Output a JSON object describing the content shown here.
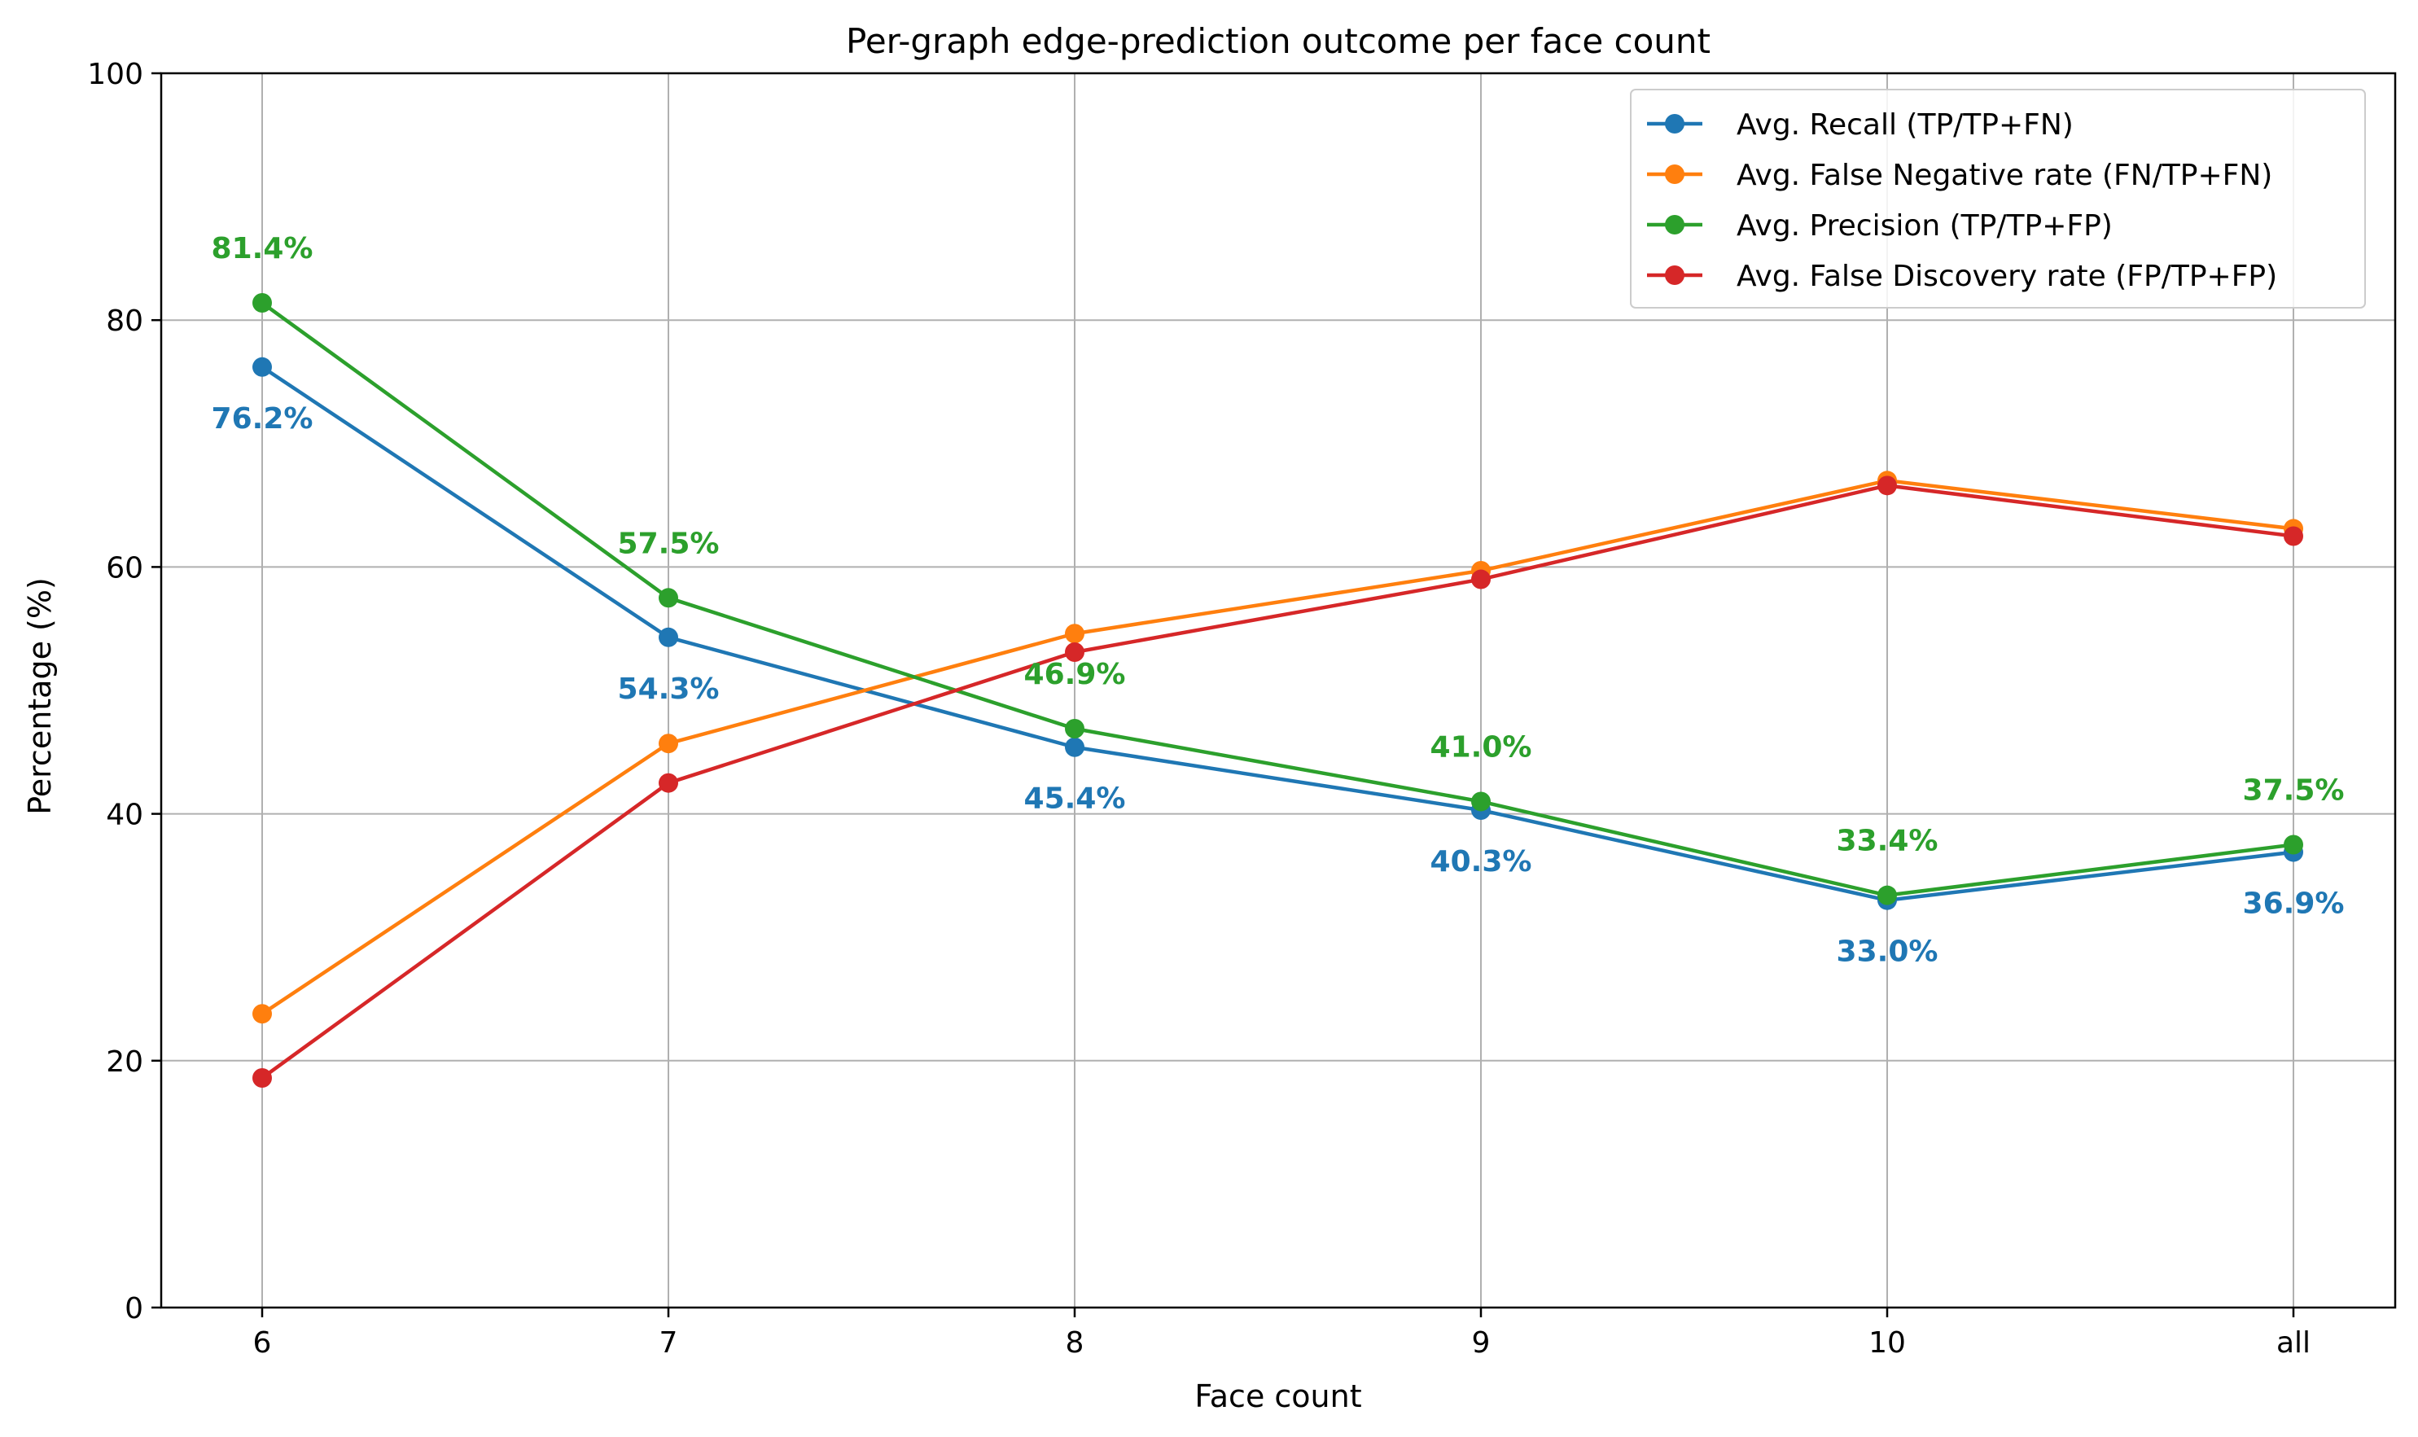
{
  "chart_data": {
    "type": "line",
    "title": "Per-graph edge-prediction outcome per face count",
    "xlabel": "Face count",
    "ylabel": "Percentage (%)",
    "categories": [
      "6",
      "7",
      "8",
      "9",
      "10",
      "all"
    ],
    "ylim": [
      0,
      100
    ],
    "yticks": [
      0,
      20,
      40,
      60,
      80,
      100
    ],
    "grid": true,
    "legend_position": "top-right",
    "series": [
      {
        "name": "Avg. Recall (TP/TP+FN)",
        "color": "#1f77b4",
        "values": [
          76.2,
          54.3,
          45.4,
          40.3,
          33.0,
          36.9
        ],
        "labels": [
          "76.2%",
          "54.3%",
          "45.4%",
          "40.3%",
          "33.0%",
          "36.9%"
        ],
        "label_placement": "below"
      },
      {
        "name": "Avg. False Negative rate (FN/TP+FN)",
        "color": "#ff7f0e",
        "values": [
          23.8,
          45.7,
          54.6,
          59.7,
          67.0,
          63.1
        ]
      },
      {
        "name": "Avg. Precision (TP/TP+FP)",
        "color": "#2ca02c",
        "values": [
          81.4,
          57.5,
          46.9,
          41.0,
          33.4,
          37.5
        ],
        "labels": [
          "81.4%",
          "57.5%",
          "46.9%",
          "41.0%",
          "33.4%",
          "37.5%"
        ],
        "label_placement": "above"
      },
      {
        "name": "Avg. False Discovery rate (FP/TP+FP)",
        "color": "#d62728",
        "values": [
          18.6,
          42.5,
          53.1,
          59.0,
          66.6,
          62.5
        ]
      }
    ]
  }
}
